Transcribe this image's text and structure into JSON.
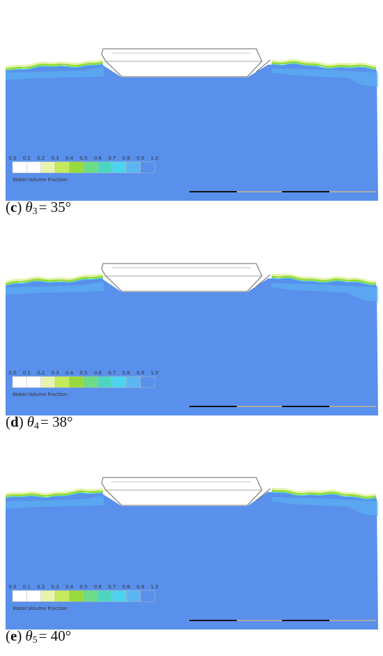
{
  "legend": {
    "ticks": [
      "0.0",
      "0.1",
      "0.2",
      "0.3",
      "0.4",
      "0.5",
      "0.6",
      "0.7",
      "0.8",
      "0.9",
      "1.0"
    ],
    "colors": [
      "#ffffff",
      "#ffffff",
      "#e6f4ae",
      "#c4ea5e",
      "#98da3e",
      "#6edb86",
      "#4cd6c2",
      "#4cd3ef",
      "#5cb5f3",
      "#5990ec"
    ],
    "title": "Water.Volume Fraction"
  },
  "panels": [
    {
      "caption": {
        "open": "(",
        "letter": "c",
        "close": ")",
        "symbol": "θ",
        "index": "3",
        "value": "= 35°"
      }
    },
    {
      "caption": {
        "open": "(",
        "letter": "d",
        "close": ")",
        "symbol": "θ",
        "index": "4",
        "value": "= 38°"
      }
    },
    {
      "caption": {
        "open": "(",
        "letter": "e",
        "close": ")",
        "symbol": "θ",
        "index": "5",
        "value": "= 40°"
      }
    }
  ]
}
